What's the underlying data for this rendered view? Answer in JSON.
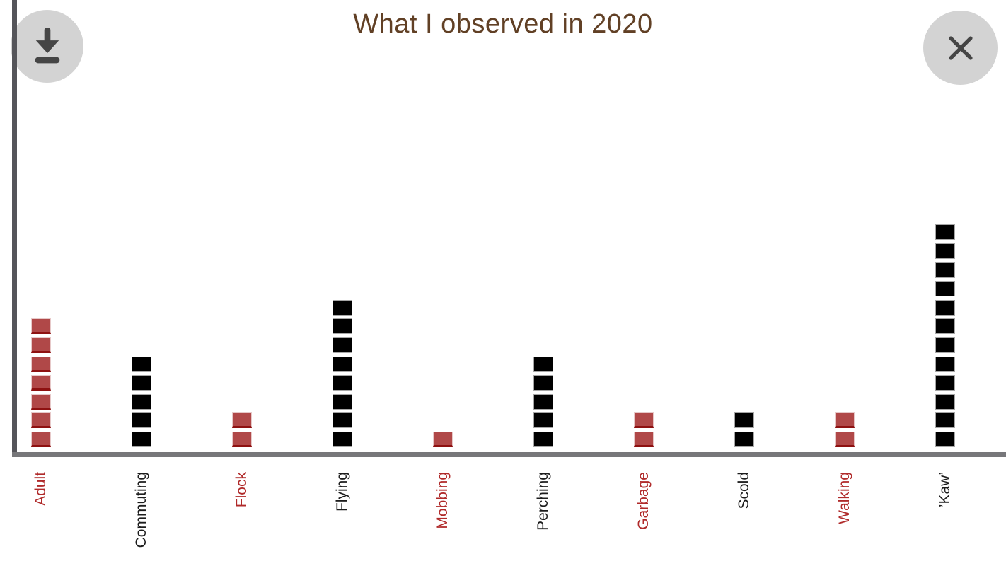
{
  "chart_data": {
    "type": "bar",
    "subtype": "waffle-pictogram",
    "title": "What I observed in 2020",
    "xlabel": "",
    "ylabel": "",
    "grid": false,
    "legend": "none",
    "unit": "1 square = 1 observation",
    "categories": [
      "Adult",
      "Commuting",
      "Flock",
      "Flying",
      "Mobbing",
      "Perching",
      "Garbage",
      "Scold",
      "Walking",
      "’Kaw’"
    ],
    "values": [
      7,
      5,
      2,
      8,
      1,
      5,
      2,
      2,
      2,
      12
    ],
    "series_colors": [
      "red",
      "black",
      "red",
      "black",
      "red",
      "black",
      "red",
      "black",
      "red",
      "black"
    ],
    "ylim": [
      0,
      13
    ]
  },
  "toolbar": {
    "download_icon": "download-icon",
    "close_icon": "close-icon"
  },
  "palette": {
    "title_brown": "#614025",
    "red_fill": "#b04848",
    "red_edge_bottom": "#8e1111",
    "red_edge_light": "#e7c9c9",
    "black_fill": "#000000",
    "black_edge": "#a6a6a6",
    "label_red": "#b02a2a",
    "label_black": "#1c1c1c",
    "axis_vertical": "#55555a",
    "axis_horizontal": "#77777a",
    "button_bg": "#d3d3d3",
    "button_icon": "#454545"
  }
}
